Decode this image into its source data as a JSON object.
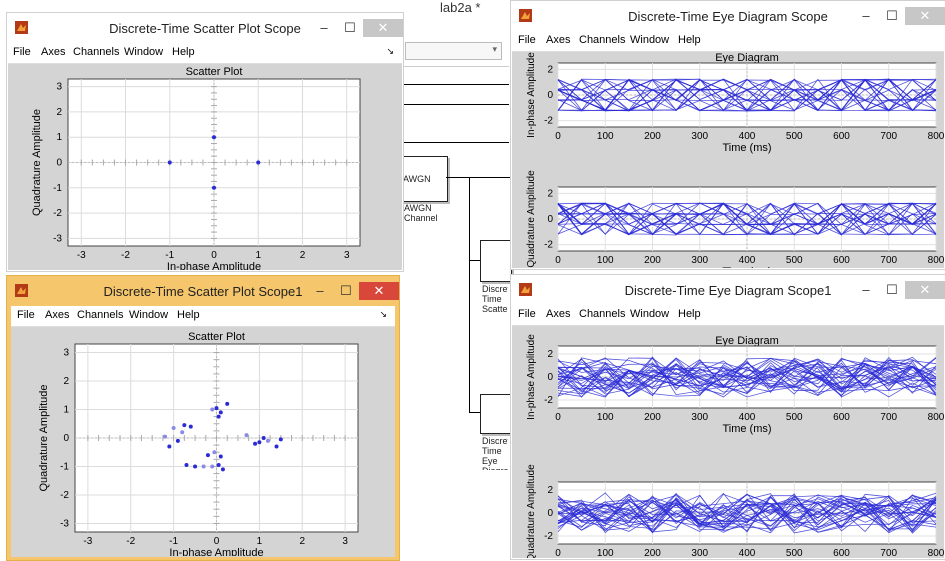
{
  "model": {
    "title": "lab2a *",
    "blocks": {
      "awgn_text": "AWGN",
      "awgn_label_1": "AWGN",
      "awgn_label_2": "Channel",
      "scatter_label": "Discrete-Time Scatter Plot Scope",
      "eye_label": "Discrete-Time Eye Diagram Scope"
    }
  },
  "menu": [
    "File",
    "Axes",
    "Channels",
    "Window",
    "Help"
  ],
  "colors": {
    "trace": "#2b2bd6",
    "plot_bg": "#ffffff",
    "figure_bg": "#d4d4d4",
    "active_frame": "#f5c66b",
    "close_active": "#d9463a"
  },
  "windows": {
    "scatter1": {
      "title": "Discrete-Time Scatter Plot Scope"
    },
    "scatter2": {
      "title": "Discrete-Time Scatter Plot Scope1"
    },
    "eye1": {
      "title": "Discrete-Time Eye Diagram Scope"
    },
    "eye2": {
      "title": "Discrete-Time Eye Diagram Scope1"
    }
  },
  "chart_data": [
    {
      "type": "scatter",
      "window": "scatter1",
      "title": "Scatter Plot",
      "xlabel": "In-phase Amplitude",
      "ylabel": "Quadrature Amplitude",
      "xlim": [
        -3.3,
        3.3
      ],
      "ylim": [
        -3.3,
        3.3
      ],
      "xticks": [
        -3,
        -2,
        -1,
        0,
        1,
        2,
        3
      ],
      "yticks": [
        -3,
        -2,
        -1,
        0,
        1,
        2,
        3
      ],
      "grid": true,
      "points": [
        [
          0,
          1
        ],
        [
          0,
          -1
        ],
        [
          -1,
          0
        ],
        [
          1,
          0
        ]
      ]
    },
    {
      "type": "scatter",
      "window": "scatter2",
      "title": "Scatter Plot",
      "xlabel": "In-phase Amplitude",
      "ylabel": "Quadrature Amplitude",
      "xlim": [
        -3.3,
        3.3
      ],
      "ylim": [
        -3.3,
        3.3
      ],
      "xticks": [
        -3,
        -2,
        -1,
        0,
        1,
        2,
        3
      ],
      "yticks": [
        -3,
        -2,
        -1,
        0,
        1,
        2,
        3
      ],
      "grid": true,
      "points": [
        [
          0.0,
          1.05
        ],
        [
          0.1,
          0.9
        ],
        [
          -0.1,
          1.0
        ],
        [
          0.25,
          1.2
        ],
        [
          0.05,
          0.75
        ],
        [
          -0.05,
          -0.5
        ],
        [
          0.1,
          -0.65
        ],
        [
          -0.2,
          -0.6
        ],
        [
          -0.1,
          -1.0
        ],
        [
          0.05,
          -0.95
        ],
        [
          0.15,
          -1.1
        ],
        [
          -0.3,
          -1.0
        ],
        [
          -0.5,
          -1.0
        ],
        [
          -0.7,
          -0.95
        ],
        [
          -0.8,
          0.2
        ],
        [
          -0.9,
          -0.1
        ],
        [
          -1.1,
          -0.3
        ],
        [
          -1.0,
          0.35
        ],
        [
          -0.75,
          0.45
        ],
        [
          -0.6,
          0.4
        ],
        [
          -1.2,
          0.05
        ],
        [
          0.9,
          -0.2
        ],
        [
          1.0,
          -0.15
        ],
        [
          1.2,
          -0.1
        ],
        [
          1.5,
          -0.05
        ],
        [
          1.4,
          -0.3
        ],
        [
          0.7,
          0.1
        ],
        [
          1.1,
          0.0
        ]
      ]
    },
    {
      "type": "line",
      "window": "eye1",
      "title": "Eye Diagram",
      "xlabel": "Time (ms)",
      "xlim": [
        0,
        800
      ],
      "xticks": [
        0,
        100,
        200,
        300,
        400,
        500,
        600,
        700,
        800
      ],
      "axes": [
        {
          "ylabel": "In-phase Amplitude",
          "ylim": [
            -2.5,
            2.5
          ],
          "yticks": [
            -2,
            0,
            2
          ],
          "levels": [
            -1.2,
            -0.4,
            0.4,
            1.2
          ],
          "noise": 0.05
        },
        {
          "ylabel": "Quadrature Amplitude",
          "ylim": [
            -2.5,
            2.5
          ],
          "yticks": [
            -2,
            0,
            2
          ],
          "levels": [
            -1.2,
            -0.4,
            0.4,
            1.2
          ],
          "noise": 0.05
        }
      ]
    },
    {
      "type": "line",
      "window": "eye2",
      "title": "Eye Diagram",
      "xlabel": "Time (ms)",
      "xlim": [
        0,
        800
      ],
      "xticks": [
        0,
        100,
        200,
        300,
        400,
        500,
        600,
        700,
        800
      ],
      "axes": [
        {
          "ylabel": "In-phase Amplitude",
          "ylim": [
            -2.7,
            2.7
          ],
          "yticks": [
            -2,
            0,
            2
          ],
          "levels": [
            -1.2,
            -0.4,
            0.4,
            1.2
          ],
          "noise": 0.55
        },
        {
          "ylabel": "Quadrature Amplitude",
          "ylim": [
            -2.7,
            2.7
          ],
          "yticks": [
            -2,
            0,
            2
          ],
          "levels": [
            -1.2,
            -0.4,
            0.4,
            1.2
          ],
          "noise": 0.55
        }
      ]
    }
  ]
}
